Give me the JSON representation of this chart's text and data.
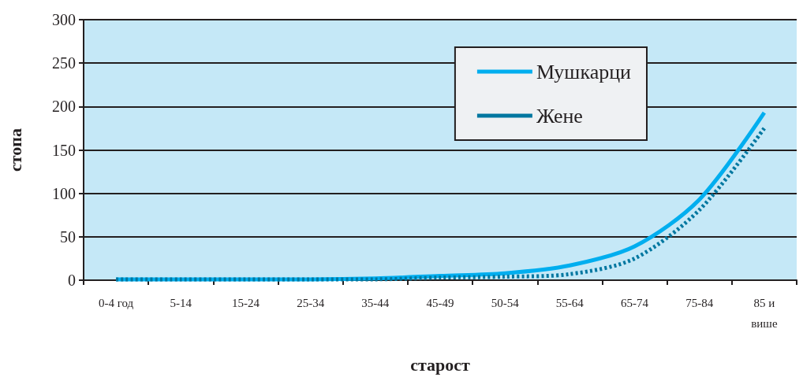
{
  "chart_data": {
    "type": "line",
    "xlabel": "старост",
    "ylabel": "стопа",
    "categories": [
      "0-4 год",
      "5-14",
      "15-24",
      "25-34",
      "35-44",
      "45-49",
      "50-54",
      "55-64",
      "65-74",
      "75-84",
      "85 и\nвише"
    ],
    "series": [
      {
        "name": "Мушкарци",
        "color": "#00aeef",
        "line_style": "solid",
        "values": [
          1,
          1,
          1,
          1,
          2,
          5,
          8,
          17,
          39,
          93,
          193
        ]
      },
      {
        "name": "Жене",
        "color": "#0077a0",
        "line_style": "dashed",
        "values": [
          1,
          1,
          1,
          1,
          1,
          3,
          4,
          7,
          25,
          81,
          175
        ]
      }
    ],
    "ylim": [
      0,
      300
    ],
    "yticks": [
      0,
      50,
      100,
      150,
      200,
      250,
      300
    ],
    "grid": "y",
    "legend": "top right",
    "marker": "none"
  }
}
